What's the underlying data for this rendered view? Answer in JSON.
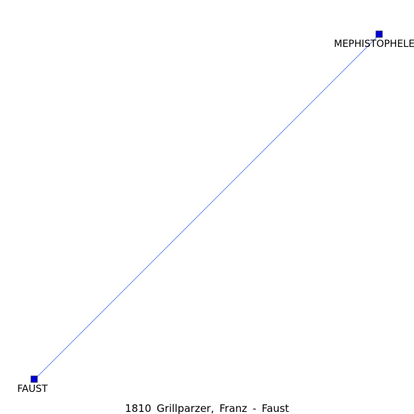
{
  "graph": {
    "nodes": [
      {
        "id": "mephistopheles",
        "label": "MEPHISTOPHELES"
      },
      {
        "id": "faust",
        "label": "FAUST"
      }
    ],
    "edges": [
      {
        "from": "faust",
        "to": "mephistopheles"
      }
    ],
    "caption": "1810 Grillparzer, Franz - Faust"
  },
  "colors": {
    "node_fill": "#0000dd",
    "node_stroke": "#1a1a55",
    "edge": "#6688ee",
    "text": "#000000",
    "background": "#ffffff"
  }
}
